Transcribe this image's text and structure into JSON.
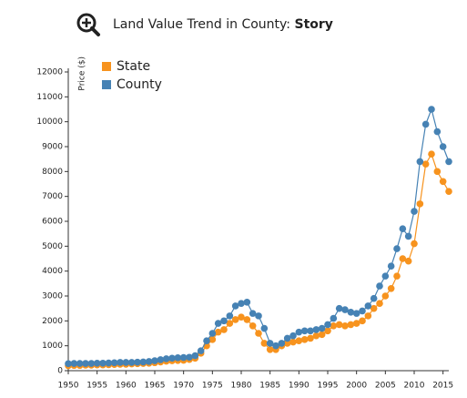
{
  "chart_data": {
    "type": "line",
    "title": "Land Value Trend in County:",
    "title_emphasis": "Story",
    "y_label": "Price ($)",
    "x": [
      1950,
      1951,
      1952,
      1953,
      1954,
      1955,
      1956,
      1957,
      1958,
      1959,
      1960,
      1961,
      1962,
      1963,
      1964,
      1965,
      1966,
      1967,
      1968,
      1969,
      1970,
      1971,
      1972,
      1973,
      1974,
      1975,
      1976,
      1977,
      1978,
      1979,
      1980,
      1981,
      1982,
      1983,
      1984,
      1985,
      1986,
      1987,
      1988,
      1989,
      1990,
      1991,
      1992,
      1993,
      1994,
      1995,
      1996,
      1997,
      1998,
      1999,
      2000,
      2001,
      2002,
      2003,
      2004,
      2005,
      2006,
      2007,
      2008,
      2009,
      2010,
      2011,
      2012,
      2013,
      2014,
      2015,
      2016
    ],
    "series": [
      {
        "name": "State",
        "color": "#f7931e",
        "values": [
          200,
          210,
          210,
          220,
          220,
          230,
          230,
          240,
          250,
          260,
          260,
          270,
          280,
          290,
          300,
          320,
          350,
          380,
          400,
          410,
          420,
          450,
          500,
          700,
          1000,
          1250,
          1550,
          1650,
          1900,
          2050,
          2150,
          2050,
          1800,
          1500,
          1100,
          850,
          850,
          1000,
          1100,
          1150,
          1200,
          1250,
          1300,
          1400,
          1450,
          1600,
          1800,
          1850,
          1800,
          1850,
          1900,
          2000,
          2200,
          2500,
          2700,
          3000,
          3300,
          3800,
          4500,
          4400,
          5100,
          6700,
          8300,
          8700,
          8000,
          7600,
          7200
        ]
      },
      {
        "name": "County",
        "color": "#4682b4",
        "values": [
          280,
          290,
          290,
          290,
          290,
          300,
          300,
          310,
          320,
          330,
          330,
          330,
          340,
          350,
          370,
          400,
          440,
          480,
          500,
          520,
          530,
          540,
          600,
          800,
          1200,
          1500,
          1900,
          2000,
          2200,
          2600,
          2700,
          2750,
          2300,
          2200,
          1700,
          1100,
          1000,
          1100,
          1300,
          1400,
          1550,
          1600,
          1600,
          1650,
          1700,
          1850,
          2100,
          2500,
          2450,
          2350,
          2300,
          2400,
          2600,
          2900,
          3400,
          3800,
          4200,
          4900,
          5700,
          5400,
          6400,
          8400,
          9900,
          10500,
          9600,
          9000,
          8400
        ]
      }
    ],
    "xlim": [
      1950,
      2016
    ],
    "xticks": [
      1950,
      1955,
      1960,
      1965,
      1970,
      1975,
      1980,
      1985,
      1990,
      1995,
      2000,
      2005,
      2010,
      2015
    ],
    "ylim": [
      0,
      12000
    ],
    "yticks": [
      0,
      1000,
      2000,
      3000,
      4000,
      5000,
      6000,
      7000,
      8000,
      9000,
      10000,
      11000,
      12000
    ],
    "legend": "top-left"
  }
}
